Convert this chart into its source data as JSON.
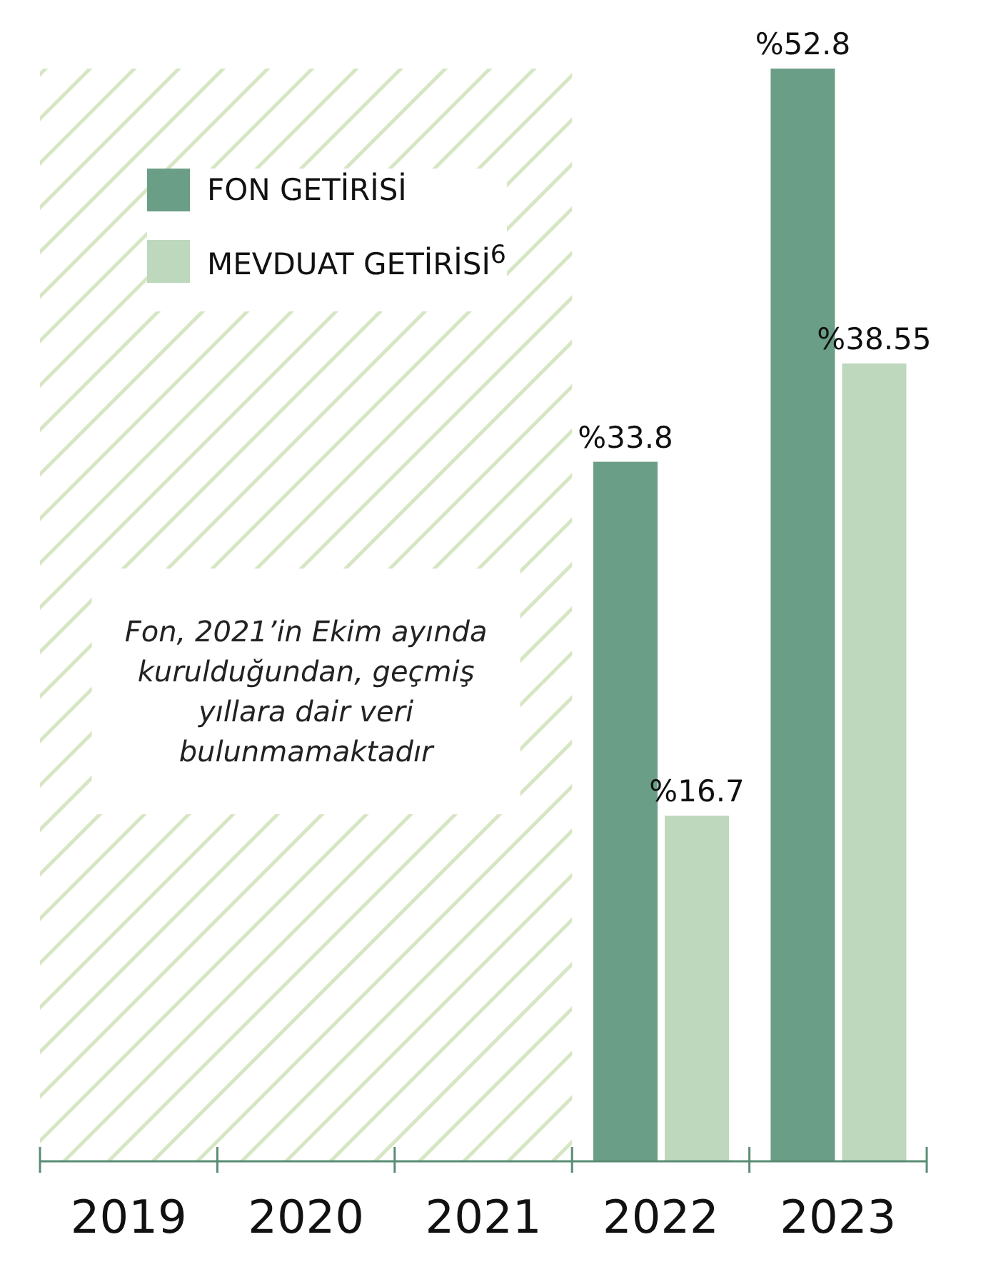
{
  "chart_data": {
    "type": "bar",
    "categories": [
      "2019",
      "2020",
      "2021",
      "2022",
      "2023"
    ],
    "series": [
      {
        "name": "FON GETİRİSİ",
        "color": "#6b9e86",
        "values": [
          null,
          null,
          null,
          33.8,
          52.8
        ],
        "value_labels": [
          null,
          null,
          null,
          "%33.8",
          "%52.8"
        ]
      },
      {
        "name": "MEVDUAT GETİRİSİ$^{6}$",
        "color": "#bdd8bc",
        "values": [
          null,
          null,
          null,
          16.7,
          38.55
        ],
        "value_labels": [
          null,
          null,
          null,
          "%16.7",
          "%38.55"
        ]
      }
    ],
    "bands": [
      {
        "axis": "x",
        "from": "2019",
        "to": "2021",
        "label": "Fon, 2021’in Ekim ayında kurulduğundan, geçmiş yıllara dair veri bulunmamaktadır",
        "color": "#d6e6c3"
      }
    ],
    "legend": "top left",
    "tick_labels": "x",
    "grid": false
  }
}
